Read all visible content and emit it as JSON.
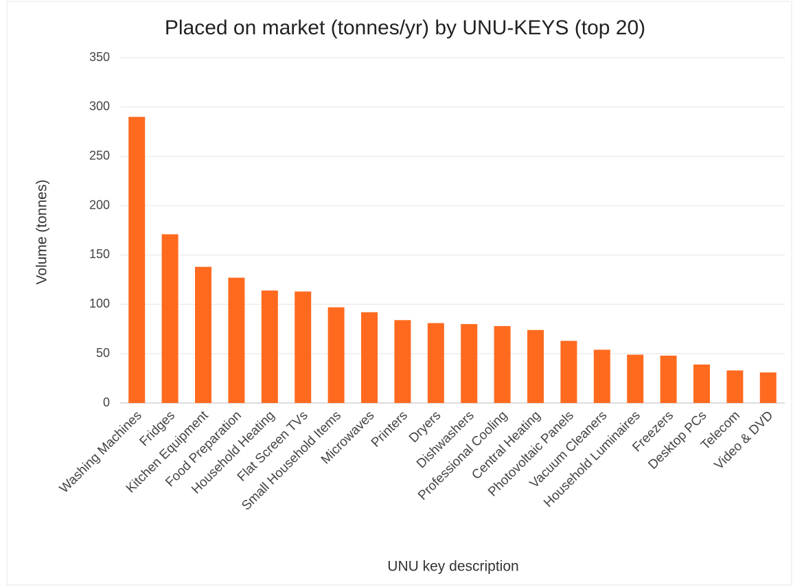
{
  "chart_data": {
    "type": "bar",
    "title": "Placed on market (tonnes/yr) by UNU-KEYS (top 20)",
    "x_label": "UNU key description",
    "y_label": "Volume (tonnes)",
    "categories": [
      "Washing Machines",
      "Fridges",
      "Kitchen Equipment",
      "Food Preparation",
      "Household Heating",
      "Flat Screen TVs",
      "Small Household Items",
      "Microwaves",
      "Printers",
      "Dryers",
      "Dishwashers",
      "Professional Cooling",
      "Central Heating",
      "Photovoltaic Panels",
      "Vacuum Cleaners",
      "Household Luminaires",
      "Freezers",
      "Desktop PCs",
      "Telecom",
      "Video & DVD"
    ],
    "values": [
      290,
      171,
      138,
      127,
      114,
      113,
      97,
      92,
      84,
      81,
      80,
      78,
      74,
      63,
      54,
      49,
      48,
      39,
      33,
      31
    ],
    "color": "#ff6a1f",
    "ylim": [
      0,
      350
    ],
    "yticks": [
      0,
      50,
      100,
      150,
      200,
      250,
      300,
      350
    ],
    "grid": true
  }
}
